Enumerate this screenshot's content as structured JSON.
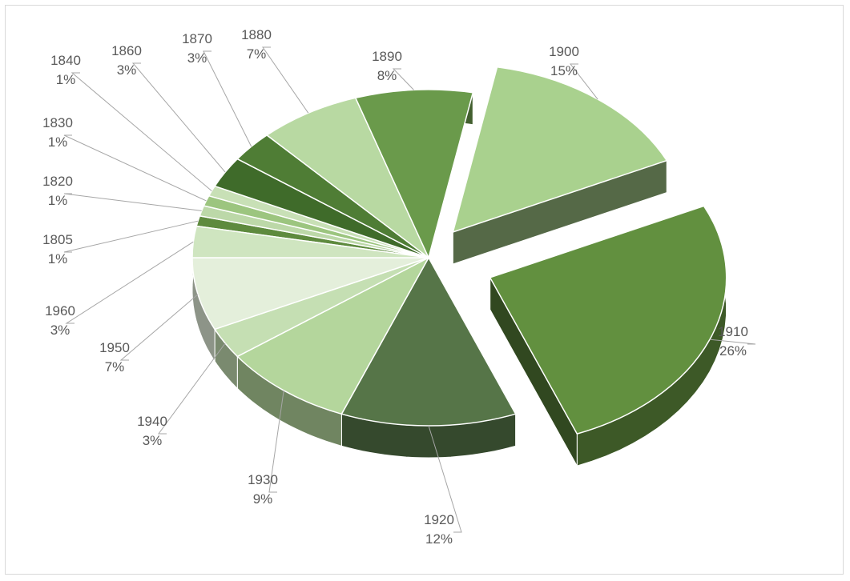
{
  "chart_data": {
    "type": "pie",
    "style": "3d-exploded",
    "title": "",
    "legend": "none",
    "categories": [
      "1805",
      "1820",
      "1830",
      "1840",
      "1860",
      "1870",
      "1880",
      "1890",
      "1900",
      "1910",
      "1920",
      "1930",
      "1940",
      "1950",
      "1960"
    ],
    "values": [
      1,
      1,
      1,
      1,
      3,
      3,
      7,
      8,
      15,
      26,
      12,
      9,
      3,
      7,
      3
    ],
    "value_labels": [
      "1%",
      "1%",
      "1%",
      "1%",
      "3%",
      "3%",
      "7%",
      "8%",
      "15%",
      "26%",
      "12%",
      "9%",
      "3%",
      "7%",
      "3%"
    ],
    "colors": [
      "#5e8a3e",
      "#bcd8a8",
      "#9cc57f",
      "#c8e0b6",
      "#3f6b2a",
      "#4f7d35",
      "#b8d9a2",
      "#6a9a4b",
      "#a9d18e",
      "#62903f",
      "#567548",
      "#b4d69c",
      "#c5dfb3",
      "#e4efdb",
      "#cfe5c0"
    ]
  }
}
